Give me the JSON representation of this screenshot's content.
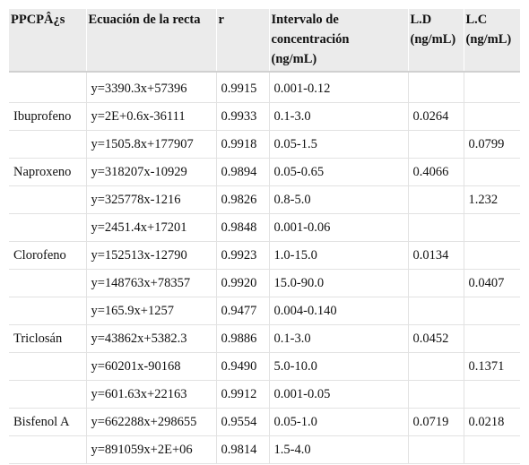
{
  "table": {
    "headers": [
      "PPCPÂ¿s",
      "Ecuación de la recta",
      "r",
      "Intervalo de concentración (ng/mL)",
      "L.D (ng/mL)",
      "L.C (ng/mL)"
    ],
    "header_lines": {
      "interval": [
        "Intervalo de",
        "concentración",
        "(ng/mL)"
      ],
      "ld": [
        "L.D",
        "(ng/mL)"
      ],
      "lc": [
        "L.C",
        "(ng/mL)"
      ]
    },
    "rows": [
      [
        "",
        "y=3390.3x+57396",
        "0.9915",
        "0.001-0.12",
        "",
        ""
      ],
      [
        "Ibuprofeno",
        "y=2E+0.6x-36111",
        "0.9933",
        "0.1-3.0",
        "0.0264",
        ""
      ],
      [
        "",
        "y=1505.8x+177907",
        "0.9918",
        "0.05-1.5",
        "",
        "0.0799"
      ],
      [
        "Naproxeno",
        "y=318207x-10929",
        "0.9894",
        "0.05-0.65",
        "0.4066",
        ""
      ],
      [
        "",
        "y=325778x-1216",
        "0.9826",
        "0.8-5.0",
        "",
        "1.232"
      ],
      [
        "",
        "y=2451.4x+17201",
        "0.9848",
        "0.001-0.06",
        "",
        ""
      ],
      [
        "Clorofeno",
        "y=152513x-12790",
        "0.9923",
        "1.0-15.0",
        "0.0134",
        ""
      ],
      [
        "",
        "y=148763x+78357",
        "0.9920",
        "15.0-90.0",
        "",
        "0.0407"
      ],
      [
        "",
        "y=165.9x+1257",
        "0.9477",
        "0.004-0.140",
        "",
        ""
      ],
      [
        "Triclosán",
        "y=43862x+5382.3",
        "0.9886",
        "0.1-3.0",
        "0.0452",
        ""
      ],
      [
        "",
        "y=60201x-90168",
        "0.9490",
        "5.0-10.0",
        "",
        "0.1371"
      ],
      [
        "",
        "y=601.63x+22163",
        "0.9912",
        "0.001-0.05",
        "",
        ""
      ],
      [
        "Bisfenol A",
        "y=662288x+298655",
        "0.9554",
        "0.05-1.0",
        "0.0719",
        "0.0218"
      ],
      [
        "",
        "y=891059x+2E+06",
        "0.9814",
        "1.5-4.0",
        "",
        ""
      ]
    ]
  }
}
